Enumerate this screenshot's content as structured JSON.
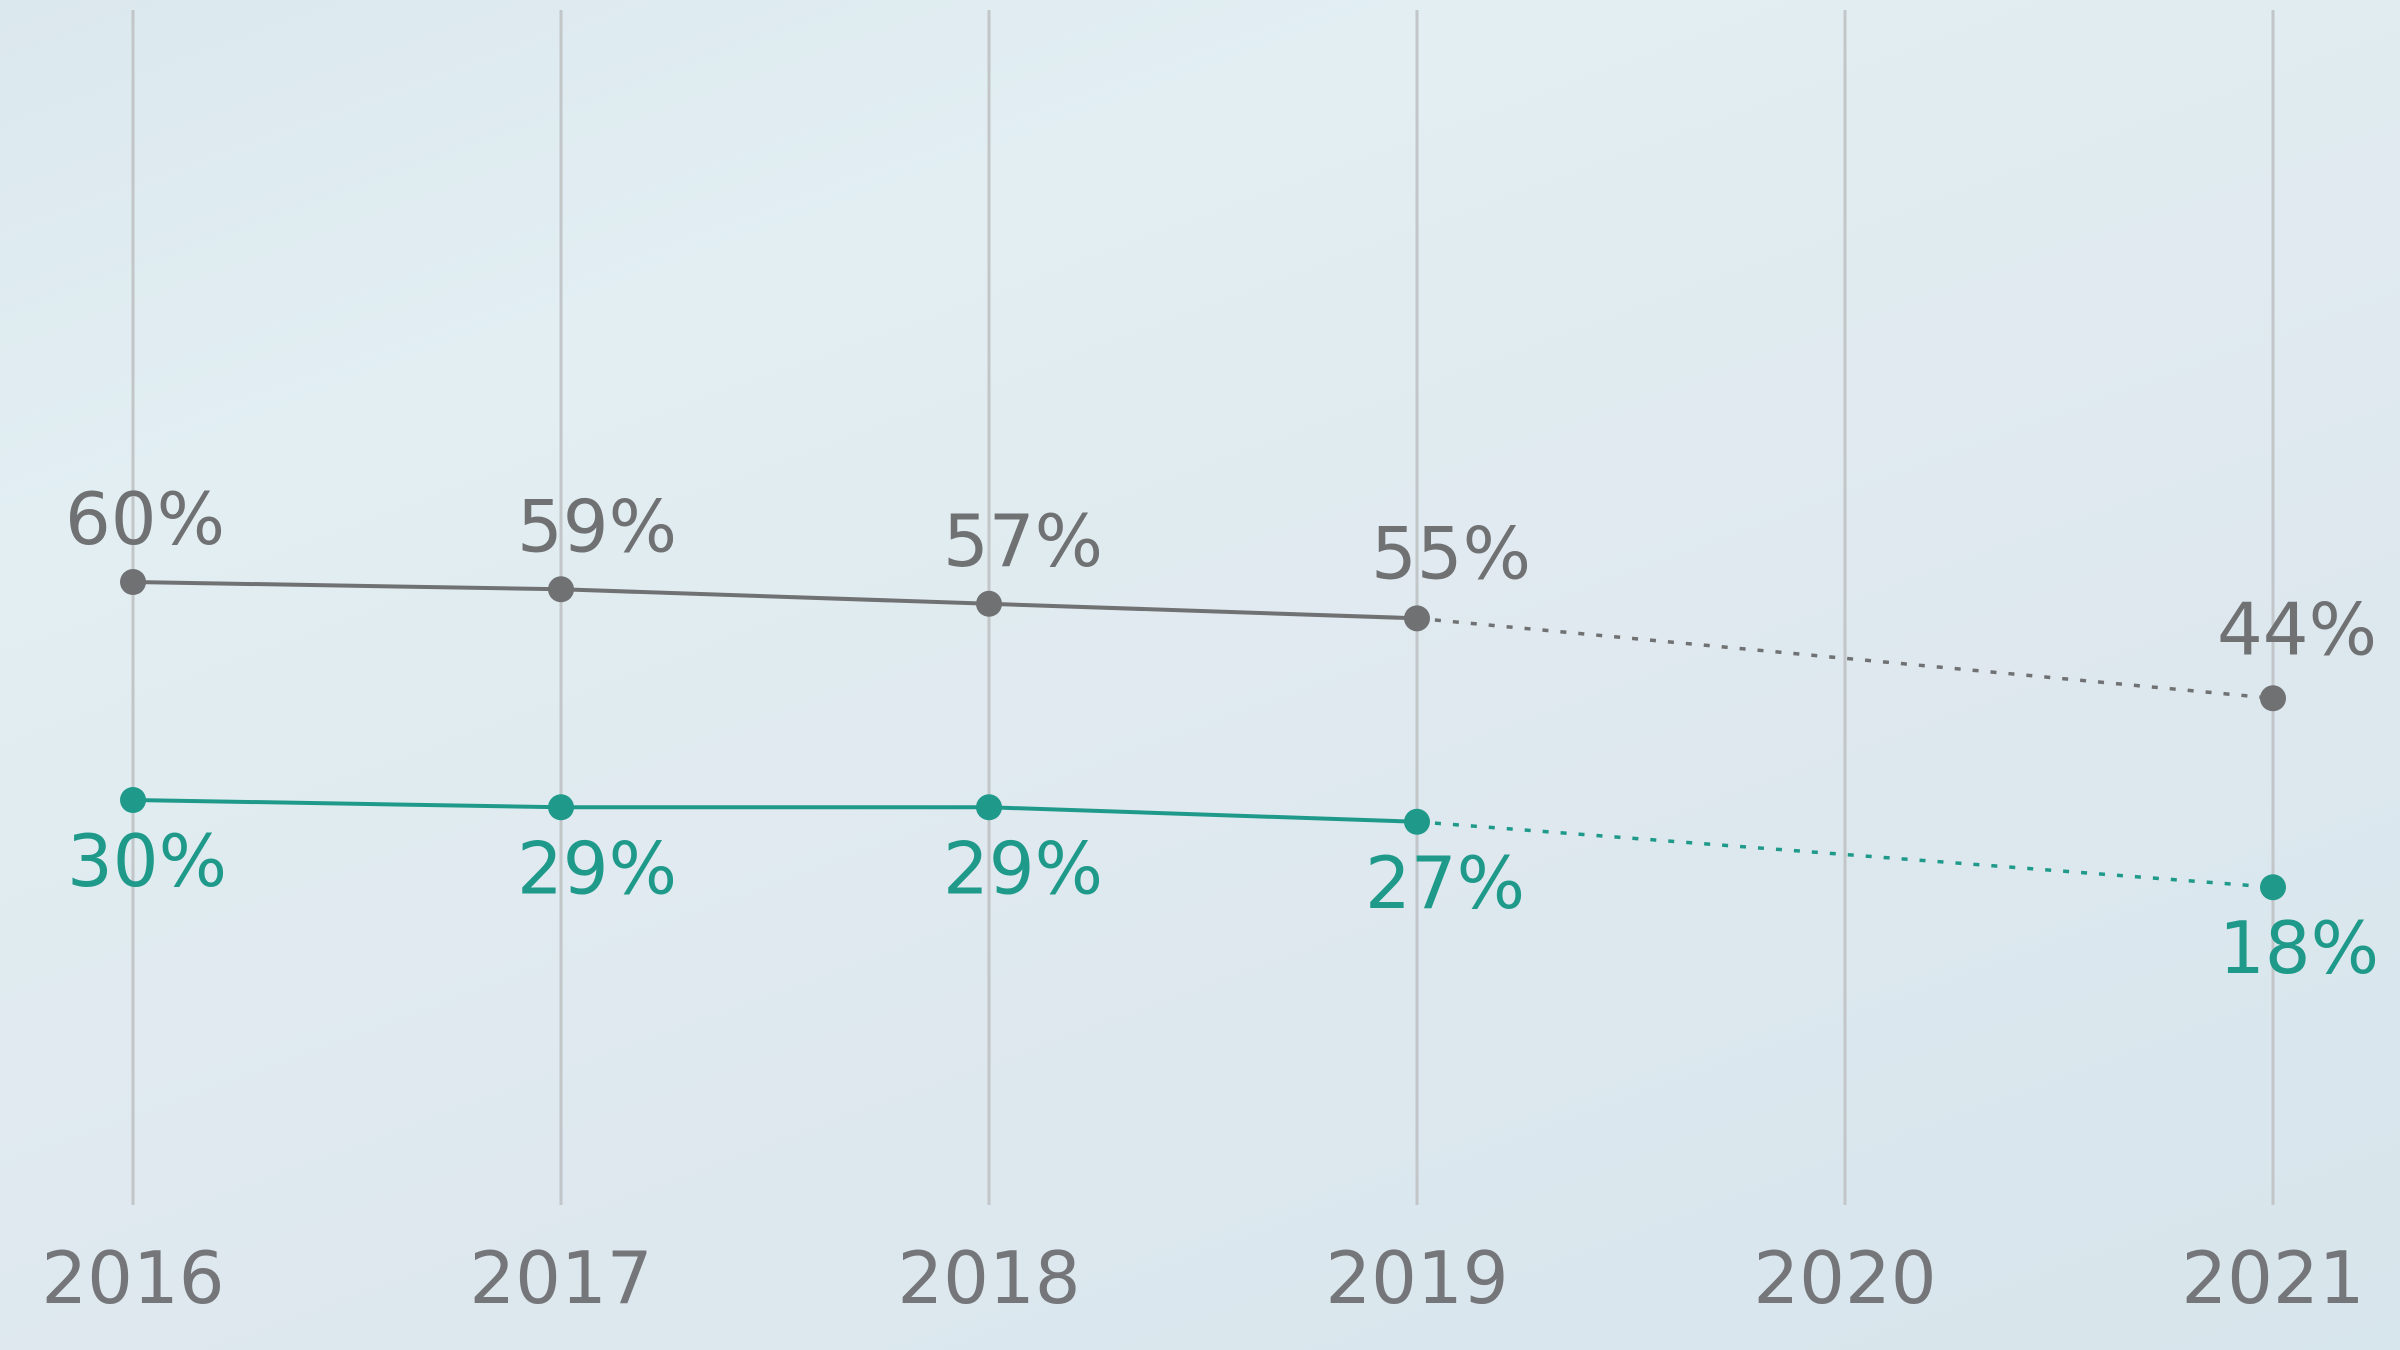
{
  "chart_data": {
    "type": "line",
    "x": [
      "2016",
      "2017",
      "2018",
      "2019",
      "2020",
      "2021"
    ],
    "series": [
      {
        "values": [
          60,
          59,
          57,
          55,
          null,
          44
        ],
        "labels": [
          "60%",
          "59%",
          "57%",
          "55%",
          "",
          "44%"
        ],
        "color": "#707173",
        "solid_through": "2019",
        "dashed_from": "2019"
      },
      {
        "values": [
          30,
          29,
          29,
          27,
          null,
          18
        ],
        "labels": [
          "30%",
          "29%",
          "29%",
          "27%",
          "",
          "18%"
        ],
        "color": "#1f9a8a",
        "solid_through": "2019",
        "dashed_from": "2019"
      }
    ],
    "ylim": [
      0,
      100
    ],
    "grid": "vertical",
    "title": "",
    "xlabel": "",
    "ylabel": ""
  },
  "colors": {
    "gray_series": "#707173",
    "teal_series": "#1f9a8a",
    "axis_text": "#757679",
    "gridline": "#c2c6c9"
  }
}
